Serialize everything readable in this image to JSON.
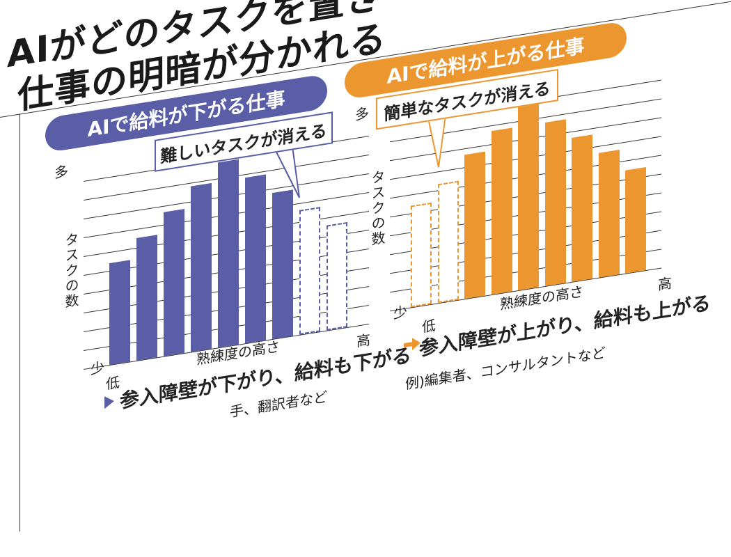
{
  "title": {
    "line1": "AIがどのタスクを置き",
    "line2": "仕事の明暗が分かれる"
  },
  "colors": {
    "down": "#5a5ea6",
    "up": "#ec9630"
  },
  "left": {
    "heading": "AIで給料が下がる仕事",
    "callout": "難しいタスクが消える",
    "y_high": "多",
    "y_label": "タスクの数",
    "y_low": "少",
    "x_low": "低",
    "x_label": "熟練度の高さ",
    "x_high": "高",
    "conclusion": "参入障壁が下がり、給料も下がる",
    "examples": "手、翻訳者など"
  },
  "right": {
    "heading": "AIで給料が上がる仕事",
    "callout": "簡単なタスクが消える",
    "y_high": "多",
    "y_label": "タスクの数",
    "y_low": "少",
    "x_low": "低",
    "x_label": "熟練度の高さ",
    "x_high": "高",
    "conclusion": "参入障壁が上がり、給料も上がる",
    "examples": "例)編集者、コンサルタントなど"
  },
  "chart_data": [
    {
      "type": "bar",
      "title": "AIで給料が下がる仕事",
      "xlabel": "熟練度の高さ",
      "ylabel": "タスクの数",
      "x_range": [
        "低",
        "高"
      ],
      "y_range": [
        "少",
        "多"
      ],
      "values": [
        5.2,
        6.3,
        7.4,
        8.5,
        9.5,
        8.5,
        7.5,
        6.4,
        5.4
      ],
      "removed_by_ai": [
        false,
        false,
        false,
        false,
        false,
        false,
        false,
        true,
        true
      ],
      "annotation": "難しいタスクが消える"
    },
    {
      "type": "bar",
      "title": "AIで給料が上がる仕事",
      "xlabel": "熟練度の高さ",
      "ylabel": "タスクの数",
      "x_range": [
        "低",
        "高"
      ],
      "y_range": [
        "少",
        "多"
      ],
      "values": [
        5.2,
        6.1,
        7.4,
        8.4,
        9.5,
        8.4,
        7.4,
        6.4,
        5.3
      ],
      "removed_by_ai": [
        true,
        true,
        false,
        false,
        false,
        false,
        false,
        false,
        false
      ],
      "annotation": "簡単なタスクが消える"
    }
  ]
}
